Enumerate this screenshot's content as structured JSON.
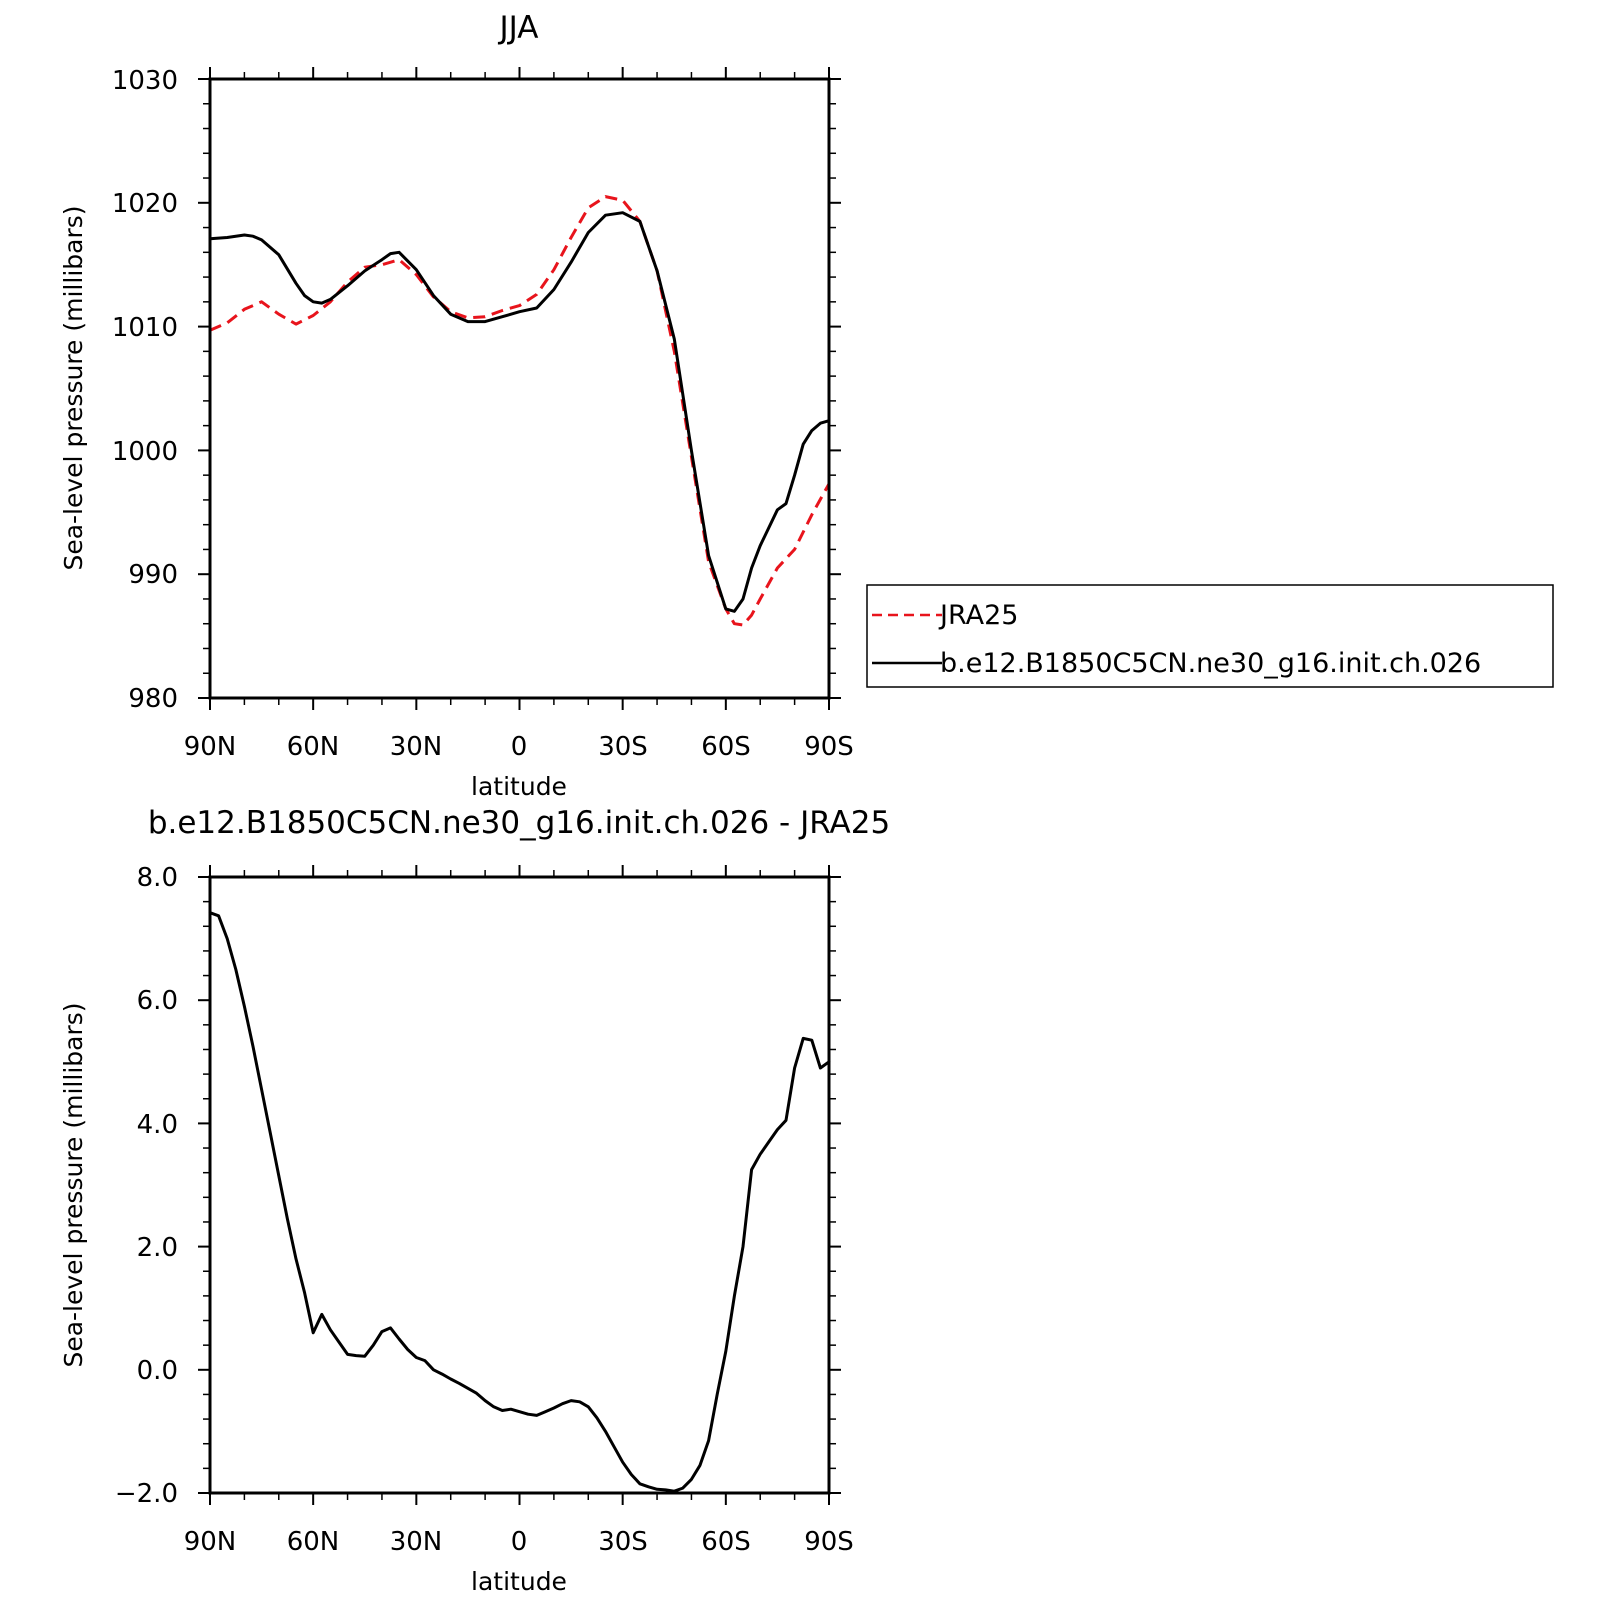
{
  "chart_data": [
    {
      "type": "line",
      "title": "JJA",
      "xlabel": "latitude",
      "ylabel": "Sea-level pressure (millibars)",
      "xlim": [
        -90,
        90
      ],
      "ylim": [
        980,
        1030
      ],
      "x_ticks": [
        -90,
        -60,
        -30,
        0,
        30,
        60,
        90
      ],
      "x_tick_labels": [
        "90N",
        "60N",
        "30N",
        "0",
        "30S",
        "60S",
        "90S"
      ],
      "y_ticks": [
        980,
        990,
        1000,
        1010,
        1020,
        1030
      ],
      "y_tick_labels": [
        "980",
        "990",
        "1000",
        "1010",
        "1020",
        "1030"
      ],
      "legend_position": "right",
      "series": [
        {
          "name": "JRA25",
          "color": "#e8141c",
          "dash": "dashed",
          "x": [
            -90,
            -85,
            -80,
            -75,
            -70,
            -65,
            -60,
            -55,
            -50,
            -45,
            -40,
            -35,
            -30,
            -25,
            -20,
            -15,
            -10,
            -5,
            0,
            5,
            10,
            15,
            20,
            25,
            30,
            35,
            40,
            45,
            50,
            55,
            60,
            62.5,
            65,
            67.5,
            70,
            75,
            80,
            85,
            90
          ],
          "y": [
            1009.7,
            1010.3,
            1011.4,
            1012.0,
            1011.0,
            1010.2,
            1010.9,
            1012.0,
            1013.6,
            1014.8,
            1015.0,
            1015.4,
            1014.2,
            1012.4,
            1011.2,
            1010.7,
            1010.8,
            1011.3,
            1011.7,
            1012.6,
            1014.6,
            1017.2,
            1019.6,
            1020.5,
            1020.2,
            1018.5,
            1014.5,
            1008.0,
            999.5,
            991.0,
            987.2,
            986.0,
            985.9,
            986.7,
            988.0,
            990.5,
            992.0,
            994.8,
            997.3
          ]
        },
        {
          "name": "b.e12.B1850C5CN.ne30_g16.init.ch.026",
          "color": "#000000",
          "dash": "solid",
          "x": [
            -90,
            -85,
            -80,
            -77.5,
            -75,
            -70,
            -65,
            -62.5,
            -60,
            -57.5,
            -55,
            -50,
            -45,
            -40,
            -37.5,
            -35,
            -30,
            -25,
            -20,
            -15,
            -10,
            -5,
            0,
            5,
            10,
            15,
            20,
            25,
            30,
            35,
            40,
            45,
            50,
            55,
            60,
            62.5,
            65,
            67.5,
            70,
            75,
            77.5,
            80,
            82.5,
            85,
            87.5,
            90
          ],
          "y": [
            1017.1,
            1017.2,
            1017.4,
            1017.3,
            1017.0,
            1015.8,
            1013.5,
            1012.5,
            1012.0,
            1011.9,
            1012.2,
            1013.3,
            1014.5,
            1015.4,
            1015.9,
            1016.0,
            1014.6,
            1012.5,
            1011.0,
            1010.4,
            1010.4,
            1010.8,
            1011.2,
            1011.5,
            1013.0,
            1015.2,
            1017.6,
            1019.0,
            1019.2,
            1018.5,
            1014.5,
            1009.0,
            1000.0,
            991.5,
            987.2,
            987.0,
            988.0,
            990.5,
            992.3,
            995.2,
            995.7,
            998.0,
            1000.5,
            1001.6,
            1002.2,
            1002.4
          ]
        }
      ]
    },
    {
      "type": "line",
      "title": "b.e12.B1850C5CN.ne30_g16.init.ch.026 - JRA25",
      "xlabel": "latitude",
      "ylabel": "Sea-level pressure (millibars)",
      "xlim": [
        -90,
        90
      ],
      "ylim": [
        -2,
        8
      ],
      "x_ticks": [
        -90,
        -60,
        -30,
        0,
        30,
        60,
        90
      ],
      "x_tick_labels": [
        "90N",
        "60N",
        "30N",
        "0",
        "30S",
        "60S",
        "90S"
      ],
      "y_ticks": [
        -2,
        0,
        2,
        4,
        6,
        8
      ],
      "y_tick_labels": [
        "−2.0",
        "0.0",
        "2.0",
        "4.0",
        "6.0",
        "8.0"
      ],
      "series": [
        {
          "color": "#000000",
          "dash": "solid",
          "x": [
            -90,
            -87.5,
            -85,
            -82.5,
            -80,
            -77.5,
            -75,
            -72.5,
            -70,
            -67.5,
            -65,
            -62.5,
            -60,
            -57.5,
            -55,
            -52.5,
            -50,
            -47.5,
            -45,
            -42.5,
            -40,
            -37.5,
            -35,
            -32.5,
            -30,
            -27.5,
            -25,
            -22.5,
            -20,
            -17.5,
            -15,
            -12.5,
            -10,
            -7.5,
            -5,
            -2.5,
            0,
            2.5,
            5,
            7.5,
            10,
            12.5,
            15,
            17.5,
            20,
            22.5,
            25,
            27.5,
            30,
            32.5,
            35,
            37.5,
            40,
            42.5,
            45,
            47.5,
            50,
            52.5,
            55,
            57.5,
            60,
            62.5,
            65,
            67.5,
            70,
            72.5,
            75,
            77.5,
            80,
            82.5,
            85,
            87.5,
            90
          ],
          "y": [
            7.42,
            7.37,
            7.0,
            6.5,
            5.9,
            5.25,
            4.55,
            3.85,
            3.15,
            2.45,
            1.8,
            1.25,
            0.6,
            0.9,
            0.65,
            0.45,
            0.25,
            0.23,
            0.22,
            0.4,
            0.62,
            0.68,
            0.5,
            0.33,
            0.2,
            0.15,
            0.0,
            -0.07,
            -0.15,
            -0.22,
            -0.3,
            -0.38,
            -0.5,
            -0.6,
            -0.66,
            -0.64,
            -0.68,
            -0.72,
            -0.74,
            -0.68,
            -0.62,
            -0.55,
            -0.5,
            -0.52,
            -0.6,
            -0.78,
            -1.0,
            -1.25,
            -1.5,
            -1.7,
            -1.85,
            -1.9,
            -1.94,
            -1.95,
            -1.97,
            -1.92,
            -1.78,
            -1.55,
            -1.15,
            -0.4,
            0.3,
            1.2,
            2.0,
            3.25,
            3.5,
            3.7,
            3.9,
            4.05,
            4.9,
            5.38,
            5.35,
            4.9,
            5.0
          ]
        }
      ]
    }
  ]
}
